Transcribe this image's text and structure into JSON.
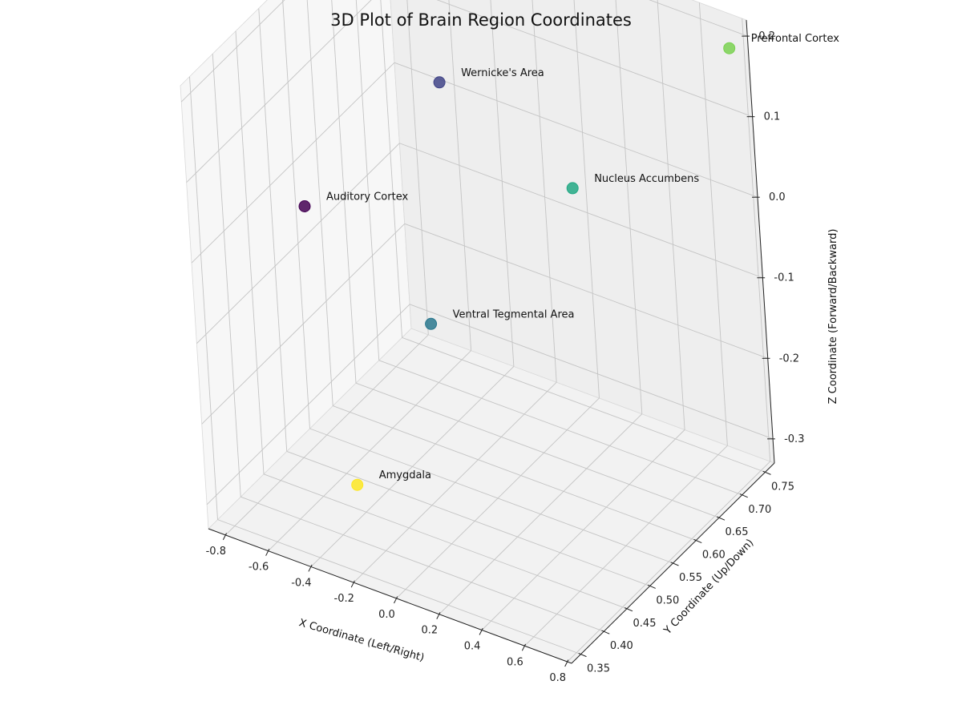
{
  "chart_data": {
    "type": "scatter",
    "projection": "3d",
    "title": "3D Plot of Brain Region Coordinates",
    "xlabel": "X Coordinate (Left/Right)",
    "ylabel": "Y Coordinate (Up/Down)",
    "zlabel": "Z Coordinate (Forward/Backward)",
    "xlim": [
      -0.88,
      0.82
    ],
    "ylim": [
      0.33,
      0.77
    ],
    "zlim": [
      -0.33,
      0.22
    ],
    "xticks": [
      "-0.8",
      "-0.6",
      "-0.4",
      "-0.2",
      "0.0",
      "0.2",
      "0.4",
      "0.6",
      "0.8"
    ],
    "yticks": [
      "0.35",
      "0.40",
      "0.45",
      "0.50",
      "0.55",
      "0.60",
      "0.65",
      "0.70",
      "0.75"
    ],
    "zticks": [
      "-0.3",
      "-0.2",
      "-0.1",
      "0.0",
      "0.1",
      "0.2"
    ],
    "grid": true,
    "colormap": "viridis",
    "points": [
      {
        "label": "Prefrontal Cortex",
        "x": 0.8,
        "y": 0.74,
        "z": 0.2,
        "color": "#7ad151"
      },
      {
        "label": "Wernicke's Area",
        "x": -0.6,
        "y": 0.74,
        "z": 0.02,
        "color": "#414487"
      },
      {
        "label": "Nucleus Accumbens",
        "x": 0.1,
        "y": 0.7,
        "z": -0.02,
        "color": "#22a884"
      },
      {
        "label": "Auditory Cortex",
        "x": -0.72,
        "y": 0.5,
        "z": -0.01,
        "color": "#440154"
      },
      {
        "label": "Ventral Tegmental Area",
        "x": -0.15,
        "y": 0.5,
        "z": -0.1,
        "color": "#2a788e"
      },
      {
        "label": "Amygdala",
        "x": -0.2,
        "y": 0.35,
        "z": -0.22,
        "color": "#fde725"
      }
    ]
  }
}
